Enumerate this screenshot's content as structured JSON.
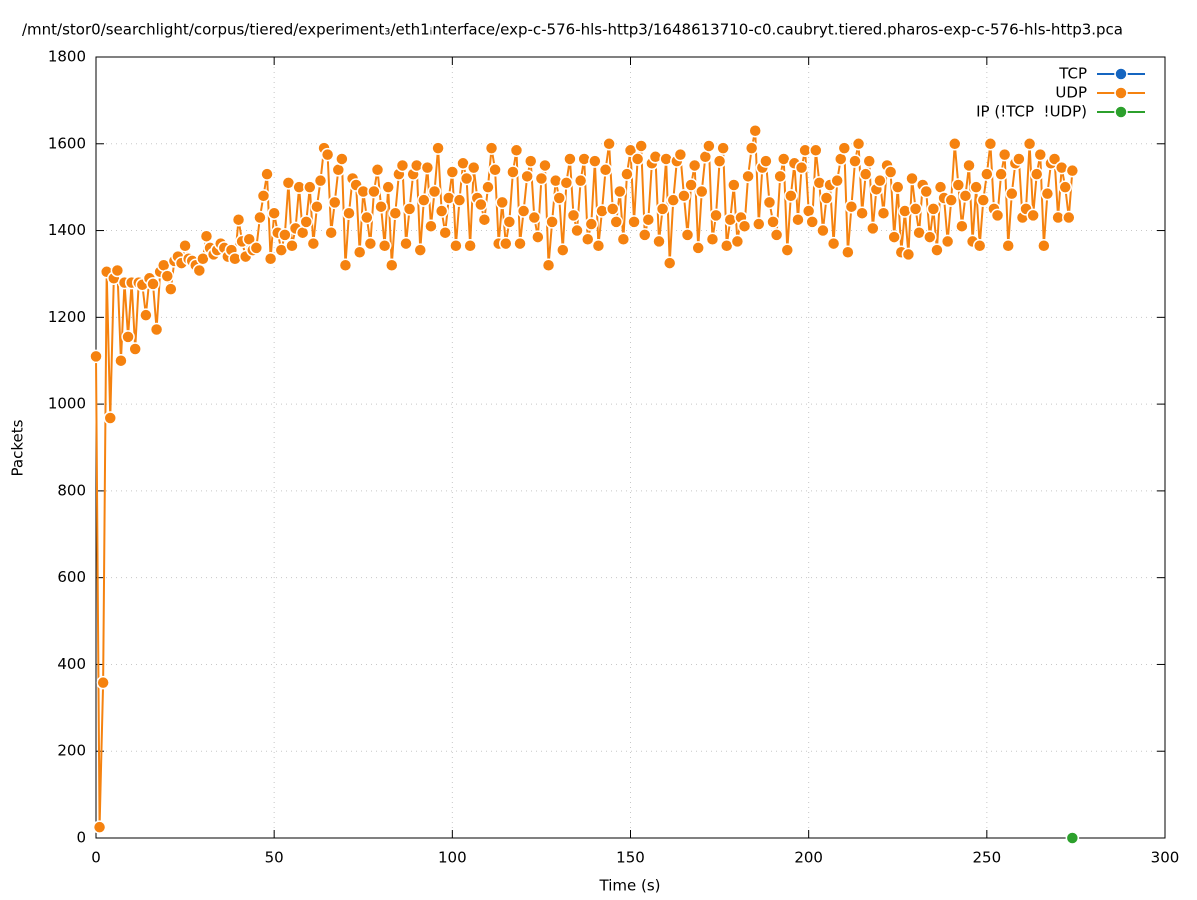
{
  "chart_data": {
    "type": "line",
    "title": "/mnt/stor0/searchlight/corpus/tiered/experiment₃/eth1ᵢnterface/exp-c-576-hls-http3/1648613710-c0.caubryt.tiered.pharos-exp-c-576-hls-http3.pca",
    "x_label": "Time (s)",
    "y_label": "Packets",
    "xlim": [
      0,
      300
    ],
    "xticks": [
      0,
      50,
      100,
      150,
      200,
      250,
      300
    ],
    "ylim": [
      0,
      1800
    ],
    "yticks": [
      0,
      200,
      400,
      600,
      800,
      1000,
      1200,
      1400,
      1600,
      1800
    ],
    "grid": true,
    "legend": "top-right",
    "series": [
      {
        "name": "TCP",
        "color": "#1565c0",
        "x": [],
        "values": []
      },
      {
        "name": "UDP",
        "color": "#f5820f",
        "x": [
          0,
          1,
          2,
          3,
          4,
          5,
          6,
          7,
          8,
          9,
          10,
          11,
          12,
          13,
          14,
          15,
          16,
          17,
          18,
          19,
          20,
          21,
          22,
          23,
          24,
          25,
          26,
          27,
          28,
          29,
          30,
          31,
          32,
          33,
          34,
          35,
          36,
          37,
          38,
          39,
          40,
          41,
          42,
          43,
          44,
          45,
          46,
          47,
          48,
          49,
          50,
          51,
          52,
          53,
          54,
          55,
          56,
          57,
          58,
          59,
          60,
          61,
          62,
          63,
          64,
          65,
          66,
          67,
          68,
          69,
          70,
          71,
          72,
          73,
          74,
          75,
          76,
          77,
          78,
          79,
          80,
          81,
          82,
          83,
          84,
          85,
          86,
          87,
          88,
          89,
          90,
          91,
          92,
          93,
          94,
          95,
          96,
          97,
          98,
          99,
          100,
          101,
          102,
          103,
          104,
          105,
          106,
          107,
          108,
          109,
          110,
          111,
          112,
          113,
          114,
          115,
          116,
          117,
          118,
          119,
          120,
          121,
          122,
          123,
          124,
          125,
          126,
          127,
          128,
          129,
          130,
          131,
          132,
          133,
          134,
          135,
          136,
          137,
          138,
          139,
          140,
          141,
          142,
          143,
          144,
          145,
          146,
          147,
          148,
          149,
          150,
          151,
          152,
          153,
          154,
          155,
          156,
          157,
          158,
          159,
          160,
          161,
          162,
          163,
          164,
          165,
          166,
          167,
          168,
          169,
          170,
          171,
          172,
          173,
          174,
          175,
          176,
          177,
          178,
          179,
          180,
          181,
          182,
          183,
          184,
          185,
          186,
          187,
          188,
          189,
          190,
          191,
          192,
          193,
          194,
          195,
          196,
          197,
          198,
          199,
          200,
          201,
          202,
          203,
          204,
          205,
          206,
          207,
          208,
          209,
          210,
          211,
          212,
          213,
          214,
          215,
          216,
          217,
          218,
          219,
          220,
          221,
          222,
          223,
          224,
          225,
          226,
          227,
          228,
          229,
          230,
          231,
          232,
          233,
          234,
          235,
          236,
          237,
          238,
          239,
          240,
          241,
          242,
          243,
          244,
          245,
          246,
          247,
          248,
          249,
          250,
          251,
          252,
          253,
          254,
          255,
          256,
          257,
          258,
          259,
          260,
          261,
          262,
          263,
          264,
          265,
          266,
          267,
          268,
          269,
          270,
          271,
          272,
          273,
          274
        ],
        "values": [
          1110,
          25,
          358,
          1305,
          968,
          1290,
          1308,
          1100,
          1280,
          1155,
          1280,
          1127,
          1280,
          1275,
          1205,
          1290,
          1277,
          1172,
          1305,
          1320,
          1295,
          1265,
          1330,
          1340,
          1325,
          1365,
          1335,
          1330,
          1320,
          1308,
          1335,
          1387,
          1360,
          1345,
          1355,
          1370,
          1360,
          1340,
          1355,
          1335,
          1425,
          1375,
          1340,
          1380,
          1355,
          1360,
          1430,
          1480,
          1530,
          1335,
          1440,
          1395,
          1355,
          1390,
          1510,
          1365,
          1405,
          1500,
          1395,
          1420,
          1500,
          1370,
          1455,
          1515,
          1590,
          1575,
          1395,
          1465,
          1540,
          1565,
          1320,
          1440,
          1520,
          1505,
          1350,
          1490,
          1430,
          1370,
          1490,
          1540,
          1455,
          1365,
          1500,
          1320,
          1440,
          1530,
          1550,
          1370,
          1450,
          1530,
          1550,
          1355,
          1470,
          1545,
          1410,
          1490,
          1590,
          1445,
          1395,
          1475,
          1535,
          1365,
          1470,
          1555,
          1520,
          1365,
          1545,
          1475,
          1460,
          1425,
          1500,
          1590,
          1540,
          1370,
          1465,
          1370,
          1420,
          1535,
          1585,
          1370,
          1445,
          1525,
          1560,
          1430,
          1385,
          1520,
          1550,
          1320,
          1420,
          1515,
          1475,
          1355,
          1510,
          1565,
          1435,
          1400,
          1515,
          1565,
          1380,
          1415,
          1560,
          1365,
          1445,
          1540,
          1600,
          1450,
          1420,
          1490,
          1380,
          1530,
          1585,
          1420,
          1565,
          1595,
          1390,
          1425,
          1555,
          1570,
          1375,
          1450,
          1565,
          1325,
          1470,
          1560,
          1575,
          1480,
          1390,
          1505,
          1550,
          1360,
          1490,
          1570,
          1595,
          1380,
          1435,
          1560,
          1590,
          1365,
          1425,
          1505,
          1375,
          1430,
          1410,
          1525,
          1590,
          1630,
          1415,
          1545,
          1560,
          1465,
          1420,
          1390,
          1525,
          1565,
          1355,
          1480,
          1555,
          1425,
          1545,
          1585,
          1445,
          1420,
          1585,
          1510,
          1400,
          1475,
          1505,
          1370,
          1515,
          1565,
          1590,
          1350,
          1455,
          1560,
          1600,
          1440,
          1530,
          1560,
          1405,
          1495,
          1515,
          1440,
          1550,
          1535,
          1385,
          1500,
          1350,
          1445,
          1345,
          1520,
          1450,
          1395,
          1505,
          1490,
          1385,
          1450,
          1355,
          1500,
          1475,
          1375,
          1470,
          1600,
          1505,
          1410,
          1480,
          1550,
          1375,
          1500,
          1365,
          1470,
          1530,
          1600,
          1450,
          1435,
          1530,
          1575,
          1365,
          1485,
          1555,
          1565,
          1430,
          1450,
          1600,
          1435,
          1530,
          1575,
          1365,
          1485,
          1555,
          1565,
          1430,
          1545,
          1500,
          1430,
          1538
        ]
      },
      {
        "name": "IP (!TCP  !UDP)",
        "color": "#2ca02c",
        "x": [
          274
        ],
        "values": [
          0
        ]
      }
    ]
  }
}
